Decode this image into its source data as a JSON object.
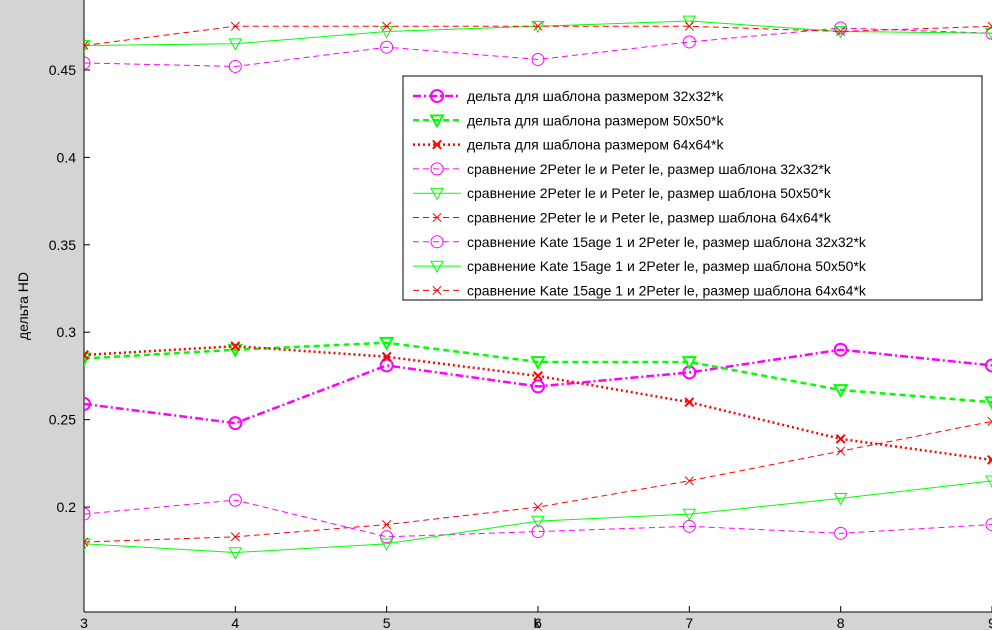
{
  "chart_data": {
    "type": "line",
    "xlabel": "k",
    "ylabel": "дельта HD",
    "xlim": [
      3,
      9
    ],
    "ylim": [
      0.14,
      0.49
    ],
    "x_ticks": [
      "3",
      "4",
      "5",
      "6",
      "7",
      "8",
      "9"
    ],
    "y_ticks": [
      "0.2",
      "0.25",
      "0.3",
      "0.35",
      "0.4",
      "0.45"
    ],
    "grid": false,
    "legend_position": "top-right",
    "x": [
      3,
      4,
      5,
      6,
      7,
      8,
      9
    ],
    "series": [
      {
        "name": "дельта для шаблона размером 32x32*k",
        "color": "#ff00ff",
        "marker": "circle",
        "dash": "dashdot",
        "bold": true,
        "values": [
          0.259,
          0.248,
          0.281,
          0.269,
          0.277,
          0.29,
          0.281
        ]
      },
      {
        "name": "дельта для шаблона размером 50x50*k",
        "color": "#00ff00",
        "marker": "triangle-down",
        "dash": "dashed",
        "bold": true,
        "values": [
          0.285,
          0.29,
          0.294,
          0.283,
          0.283,
          0.267,
          0.26
        ]
      },
      {
        "name": "дельта для шаблона размером 64x64*k",
        "color": "#ff0000",
        "marker": "x",
        "dash": "dotted",
        "bold": true,
        "values": [
          0.287,
          0.292,
          0.286,
          0.275,
          0.26,
          0.239,
          0.227
        ]
      },
      {
        "name": "сравнение 2Peter le и Peter le, размер шаблона 32x32*k",
        "color": "#ff00ff",
        "marker": "circle",
        "dash": "dashed",
        "bold": false,
        "values": [
          0.454,
          0.452,
          0.463,
          0.456,
          0.466,
          0.474,
          0.471
        ]
      },
      {
        "name": "сравнение 2Peter le и Peter le, размер шаблона 50x50*k",
        "color": "#00ff00",
        "marker": "triangle-down",
        "dash": "solid",
        "bold": false,
        "values": [
          0.464,
          0.465,
          0.472,
          0.475,
          0.478,
          0.472,
          0.471
        ]
      },
      {
        "name": "сравнение 2Peter le и Peter le, размер шаблона 64x64*k",
        "color": "#ff0000",
        "marker": "x",
        "dash": "dashed",
        "bold": false,
        "values": [
          0.464,
          0.475,
          0.475,
          0.475,
          0.475,
          0.472,
          0.475
        ]
      },
      {
        "name": "сравнение Kate 15age 1 и 2Peter le, размер шаблона 32x32*k",
        "color": "#ff00ff",
        "marker": "circle",
        "dash": "dashed",
        "bold": false,
        "values": [
          0.196,
          0.204,
          0.183,
          0.186,
          0.189,
          0.185,
          0.19
        ]
      },
      {
        "name": "сравнение Kate 15age 1 и 2Peter le, размер шаблона 50x50*k",
        "color": "#00ff00",
        "marker": "triangle-down",
        "dash": "solid",
        "bold": false,
        "values": [
          0.179,
          0.174,
          0.179,
          0.192,
          0.196,
          0.205,
          0.215
        ]
      },
      {
        "name": "сравнение Kate 15age 1 и 2Peter le, размер шаблона 64x64*k",
        "color": "#ff0000",
        "marker": "x",
        "dash": "dashed",
        "bold": false,
        "values": [
          0.18,
          0.183,
          0.19,
          0.2,
          0.215,
          0.232,
          0.249
        ]
      }
    ]
  }
}
